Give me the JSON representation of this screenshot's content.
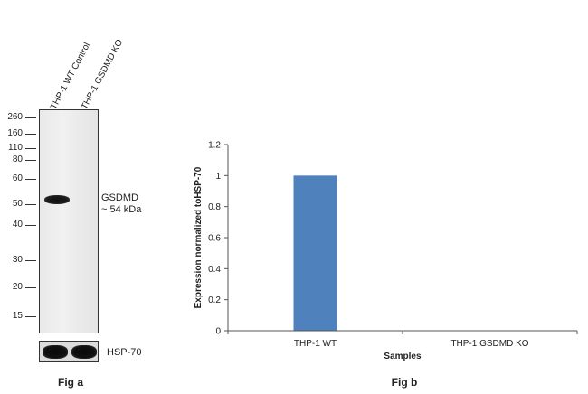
{
  "fig_a": {
    "lane_labels": [
      "THP-1 WT Control",
      "THP-1 GSDMD KO"
    ],
    "mw_markers": [
      "260",
      "160",
      "110",
      "80",
      "60",
      "50",
      "40",
      "30",
      "20",
      "15"
    ],
    "target_label": "GSDMD",
    "target_size": "~ 54 kDa",
    "loading_control_label": "HSP-70",
    "caption": "Fig a"
  },
  "fig_b": {
    "caption": "Fig b"
  },
  "chart_data": {
    "type": "bar",
    "categories": [
      "THP-1 WT",
      "THP-1 GSDMD KO"
    ],
    "values": [
      1.0,
      0.0
    ],
    "xlabel": "Samples",
    "ylabel": "Expression  normalized toHSP-70",
    "ylim": [
      0,
      1.2
    ],
    "yticks": [
      0,
      0.2,
      0.4,
      0.6,
      0.8,
      1,
      1.2
    ],
    "grid": false,
    "bar_color": "#4f81bd",
    "legend": "none"
  }
}
